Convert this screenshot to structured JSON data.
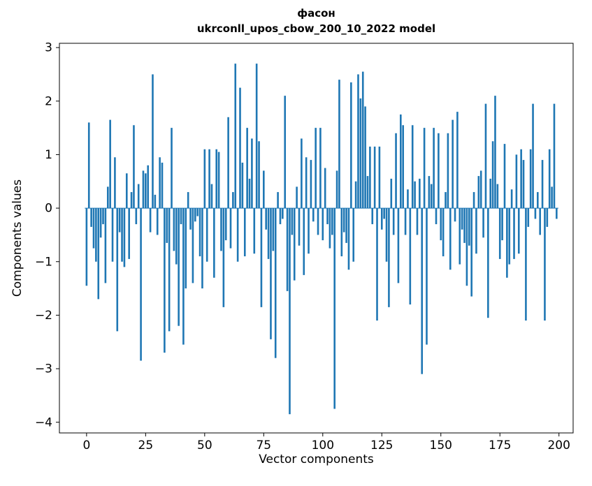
{
  "figure": {
    "title_line1": "фасон",
    "title_line2": "ukrconll_upos_cbow_200_10_2022 model",
    "xlabel": "Vector components",
    "ylabel": "Components values"
  },
  "chart_data": {
    "type": "bar",
    "title": "фасон\nukrconll_upos_cbow_200_10_2022 model",
    "xlabel": "Vector components",
    "ylabel": "Components values",
    "bar_color": "#1f77b4",
    "axis_color": "#000000",
    "grid": false,
    "legend": null,
    "x_range": [
      0,
      199
    ],
    "xlim": [
      -11.5,
      206
    ],
    "ylim": [
      -4.2,
      3.08
    ],
    "xticks": [
      0,
      25,
      50,
      75,
      100,
      125,
      150,
      175,
      200
    ],
    "yticks": [
      3,
      2,
      1,
      0,
      -1,
      -2,
      -3,
      -4
    ],
    "values": [
      -1.45,
      1.6,
      -0.35,
      -0.75,
      -1.0,
      -1.7,
      -0.55,
      -0.3,
      -1.4,
      0.4,
      1.65,
      -1.0,
      0.95,
      -2.3,
      -0.45,
      -1.0,
      -1.1,
      0.65,
      -0.95,
      0.3,
      1.55,
      -0.3,
      0.45,
      -2.85,
      0.7,
      0.65,
      0.8,
      -0.45,
      2.5,
      0.25,
      -0.5,
      0.95,
      0.85,
      -2.7,
      -0.65,
      -2.3,
      1.5,
      -0.8,
      -1.05,
      -2.2,
      -0.3,
      -2.55,
      -1.5,
      0.3,
      -0.4,
      -1.4,
      -0.25,
      -0.15,
      -0.9,
      -1.5,
      1.1,
      -1.0,
      1.1,
      0.45,
      -1.3,
      1.1,
      1.05,
      -0.8,
      -1.85,
      -0.6,
      1.7,
      -0.75,
      0.3,
      2.7,
      -1.0,
      2.25,
      0.85,
      -0.9,
      1.5,
      0.55,
      1.3,
      -0.85,
      2.7,
      1.25,
      -1.85,
      0.7,
      -0.4,
      -0.95,
      -2.45,
      -0.8,
      -2.8,
      0.3,
      -0.3,
      -0.2,
      2.1,
      -1.55,
      -3.85,
      -0.5,
      -1.35,
      0.4,
      -0.7,
      1.3,
      -1.25,
      0.95,
      -0.85,
      0.9,
      -0.25,
      1.5,
      -0.5,
      1.5,
      -0.6,
      0.75,
      -0.3,
      -0.75,
      -0.5,
      -3.75,
      0.7,
      2.4,
      -0.9,
      -0.45,
      -0.65,
      -1.15,
      2.35,
      -1.0,
      0.5,
      2.5,
      2.05,
      2.55,
      1.9,
      0.6,
      1.15,
      -0.3,
      1.15,
      -2.1,
      1.15,
      -0.4,
      -0.2,
      -1.0,
      -1.85,
      0.55,
      -0.5,
      1.4,
      -1.4,
      1.75,
      1.55,
      -0.5,
      0.35,
      -1.8,
      1.55,
      0.5,
      -0.5,
      0.55,
      -3.1,
      1.5,
      -2.55,
      0.6,
      0.45,
      1.5,
      -0.3,
      1.4,
      -0.6,
      -0.9,
      0.3,
      1.4,
      -1.15,
      1.65,
      -0.25,
      1.8,
      -1.05,
      -0.4,
      -0.65,
      -1.45,
      -0.7,
      -1.65,
      0.3,
      -0.85,
      0.6,
      0.7,
      -0.55,
      1.95,
      -2.05,
      0.55,
      1.25,
      2.1,
      0.45,
      -0.95,
      -0.6,
      1.2,
      -1.3,
      -1.05,
      0.35,
      -0.95,
      1.0,
      -0.85,
      1.1,
      0.9,
      -2.1,
      -0.35,
      1.1,
      1.95,
      -0.2,
      0.3,
      -0.5,
      0.9,
      -2.1,
      -0.35,
      1.1,
      0.4,
      1.95,
      -0.2
    ]
  }
}
